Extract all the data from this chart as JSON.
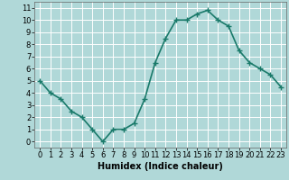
{
  "x": [
    0,
    1,
    2,
    3,
    4,
    5,
    6,
    7,
    8,
    9,
    10,
    11,
    12,
    13,
    14,
    15,
    16,
    17,
    18,
    19,
    20,
    21,
    22,
    23
  ],
  "y": [
    5.0,
    4.0,
    3.5,
    2.5,
    2.0,
    1.0,
    0.0,
    1.0,
    1.0,
    1.5,
    3.5,
    6.5,
    8.5,
    10.0,
    10.0,
    10.5,
    10.8,
    10.0,
    9.5,
    7.5,
    6.5,
    6.0,
    5.5,
    4.5
  ],
  "line_color": "#1a7a6a",
  "marker": "+",
  "marker_size": 4,
  "marker_linewidth": 1.0,
  "bg_color": "#b0d8d8",
  "grid_color": "#ffffff",
  "xlabel": "Humidex (Indice chaleur)",
  "xlabel_fontsize": 7,
  "xlim": [
    -0.5,
    23.5
  ],
  "ylim": [
    -0.5,
    11.5
  ],
  "xticks": [
    0,
    1,
    2,
    3,
    4,
    5,
    6,
    7,
    8,
    9,
    10,
    11,
    12,
    13,
    14,
    15,
    16,
    17,
    18,
    19,
    20,
    21,
    22,
    23
  ],
  "yticks": [
    0,
    1,
    2,
    3,
    4,
    5,
    6,
    7,
    8,
    9,
    10,
    11
  ],
  "tick_fontsize": 6,
  "linewidth": 1.2
}
